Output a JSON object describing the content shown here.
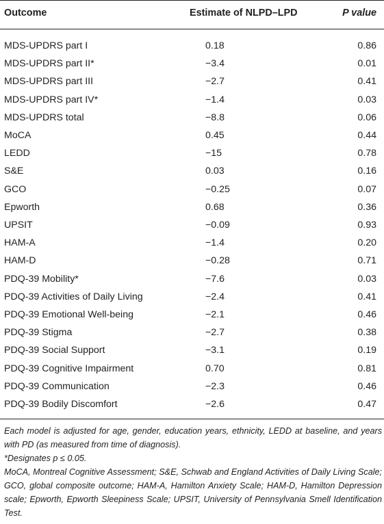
{
  "table": {
    "headers": {
      "outcome": "Outcome",
      "estimate": "Estimate of NLPD–LPD",
      "p_value": "P value"
    },
    "rows": [
      {
        "outcome": "MDS-UPDRS part I",
        "estimate": "0.18",
        "p": "0.86"
      },
      {
        "outcome": "MDS-UPDRS part II*",
        "estimate": "−3.4",
        "p": "0.01"
      },
      {
        "outcome": "MDS-UPDRS part III",
        "estimate": "−2.7",
        "p": "0.41"
      },
      {
        "outcome": "MDS-UPDRS part IV*",
        "estimate": "−1.4",
        "p": "0.03"
      },
      {
        "outcome": "MDS-UPDRS total",
        "estimate": "−8.8",
        "p": "0.06"
      },
      {
        "outcome": "MoCA",
        "estimate": "0.45",
        "p": "0.44"
      },
      {
        "outcome": "LEDD",
        "estimate": "−15",
        "p": "0.78"
      },
      {
        "outcome": "S&E",
        "estimate": "0.03",
        "p": "0.16"
      },
      {
        "outcome": "GCO",
        "estimate": "−0.25",
        "p": "0.07"
      },
      {
        "outcome": "Epworth",
        "estimate": "0.68",
        "p": "0.36"
      },
      {
        "outcome": "UPSIT",
        "estimate": "−0.09",
        "p": "0.93"
      },
      {
        "outcome": "HAM-A",
        "estimate": "−1.4",
        "p": "0.20"
      },
      {
        "outcome": "HAM-D",
        "estimate": "−0.28",
        "p": "0.71"
      },
      {
        "outcome": "PDQ-39 Mobility*",
        "estimate": "−7.6",
        "p": "0.03"
      },
      {
        "outcome": "PDQ-39 Activities of Daily Living",
        "estimate": "−2.4",
        "p": "0.41"
      },
      {
        "outcome": "PDQ-39 Emotional Well-being",
        "estimate": "−2.1",
        "p": "0.46"
      },
      {
        "outcome": "PDQ-39 Stigma",
        "estimate": "−2.7",
        "p": "0.38"
      },
      {
        "outcome": "PDQ-39 Social Support",
        "estimate": "−3.1",
        "p": "0.19"
      },
      {
        "outcome": "PDQ-39 Cognitive Impairment",
        "estimate": "0.70",
        "p": "0.81"
      },
      {
        "outcome": "PDQ-39 Communication",
        "estimate": "−2.3",
        "p": "0.46"
      },
      {
        "outcome": "PDQ-39 Bodily Discomfort",
        "estimate": "−2.6",
        "p": "0.47"
      }
    ]
  },
  "footnotes": {
    "adjustment": "Each model is adjusted for age, gender, education years, ethnicity, LEDD at baseline, and years with PD (as measured from time of diagnosis).",
    "significance": "*Designates p ≤ 0.05.",
    "abbreviations": "MoCA, Montreal Cognitive Assessment; S&E, Schwab and England Activities of Daily Living Scale; GCO, global composite outcome; HAM-A, Hamilton Anxiety Scale; HAM-D, Hamilton Depression scale; Epworth, Epworth Sleepiness Scale; UPSIT, University of Pennsylvania Smell Identification Test."
  }
}
